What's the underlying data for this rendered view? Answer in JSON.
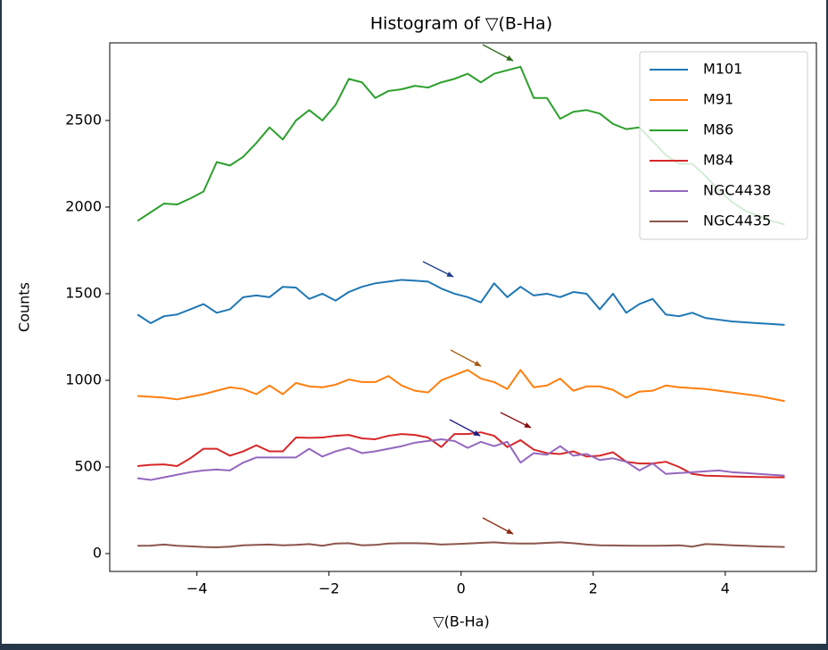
{
  "chart_data": {
    "type": "line",
    "title": "Histogram of ▽(B-Ha)",
    "xlabel": "▽(B-Ha)",
    "ylabel": "Counts",
    "x": [
      -4.9,
      -4.7,
      -4.5,
      -4.3,
      -4.1,
      -3.9,
      -3.7,
      -3.5,
      -3.3,
      -3.1,
      -2.9,
      -2.7,
      -2.5,
      -2.3,
      -2.1,
      -1.9,
      -1.7,
      -1.5,
      -1.3,
      -1.1,
      -0.9,
      -0.7,
      -0.5,
      -0.3,
      -0.1,
      0.1,
      0.3,
      0.5,
      0.7,
      0.9,
      1.1,
      1.3,
      1.5,
      1.7,
      1.9,
      2.1,
      2.3,
      2.5,
      2.7,
      2.9,
      3.1,
      3.3,
      3.5,
      3.7,
      3.9,
      4.1,
      4.3,
      4.5,
      4.7,
      4.9
    ],
    "series": [
      {
        "name": "M101",
        "color": "#1f77b4",
        "values": [
          1380,
          1330,
          1370,
          1380,
          1410,
          1440,
          1390,
          1410,
          1480,
          1490,
          1480,
          1540,
          1535,
          1470,
          1500,
          1460,
          1510,
          1540,
          1560,
          1570,
          1580,
          1575,
          1570,
          1530,
          1500,
          1480,
          1450,
          1560,
          1480,
          1540,
          1490,
          1500,
          1480,
          1510,
          1500,
          1410,
          1500,
          1390,
          1440,
          1470,
          1380,
          1370,
          1390,
          1360,
          1350,
          1340,
          1335,
          1330,
          1325,
          1320
        ]
      },
      {
        "name": "M91",
        "color": "#ff7f0e",
        "values": [
          910,
          905,
          900,
          890,
          905,
          920,
          940,
          960,
          950,
          920,
          970,
          920,
          985,
          965,
          960,
          975,
          1005,
          990,
          990,
          1025,
          970,
          940,
          930,
          1000,
          1030,
          1060,
          1010,
          990,
          950,
          1060,
          960,
          970,
          1010,
          940,
          965,
          965,
          945,
          900,
          935,
          940,
          970,
          960,
          955,
          950,
          940,
          930,
          920,
          910,
          895,
          880
        ]
      },
      {
        "name": "M86",
        "color": "#2ca02c",
        "values": [
          1920,
          1970,
          2020,
          2015,
          2050,
          2090,
          2260,
          2240,
          2290,
          2370,
          2460,
          2390,
          2500,
          2560,
          2500,
          2590,
          2740,
          2720,
          2630,
          2670,
          2680,
          2700,
          2690,
          2720,
          2740,
          2770,
          2720,
          2770,
          2790,
          2810,
          2630,
          2630,
          2510,
          2550,
          2560,
          2540,
          2480,
          2450,
          2460,
          2380,
          2300,
          2250,
          2250,
          2180,
          2100,
          2030,
          1980,
          1950,
          1920,
          1900
        ]
      },
      {
        "name": "M84",
        "color": "#d62728",
        "values": [
          505,
          512,
          515,
          505,
          550,
          605,
          605,
          565,
          590,
          625,
          590,
          590,
          670,
          668,
          670,
          680,
          685,
          665,
          660,
          680,
          690,
          685,
          670,
          615,
          690,
          690,
          700,
          680,
          615,
          655,
          600,
          580,
          575,
          590,
          560,
          565,
          585,
          530,
          520,
          520,
          530,
          500,
          460,
          450,
          448,
          445,
          443,
          442,
          441,
          440
        ]
      },
      {
        "name": "NGC4438",
        "color": "#9467bd",
        "values": [
          435,
          425,
          440,
          455,
          470,
          480,
          485,
          480,
          525,
          555,
          555,
          555,
          555,
          605,
          560,
          590,
          610,
          580,
          590,
          605,
          620,
          640,
          650,
          660,
          650,
          610,
          645,
          620,
          645,
          525,
          580,
          570,
          620,
          565,
          575,
          540,
          550,
          530,
          480,
          520,
          460,
          465,
          470,
          475,
          480,
          470,
          465,
          460,
          455,
          450
        ]
      },
      {
        "name": "NGC4435",
        "color": "#8c564b",
        "values": [
          45,
          46,
          52,
          45,
          42,
          38,
          36,
          40,
          48,
          50,
          52,
          48,
          50,
          55,
          45,
          58,
          60,
          48,
          50,
          58,
          60,
          60,
          58,
          52,
          55,
          58,
          62,
          65,
          60,
          58,
          58,
          62,
          65,
          60,
          52,
          48,
          47,
          46,
          45,
          45,
          46,
          48,
          40,
          55,
          52,
          48,
          45,
          42,
          40,
          38
        ]
      }
    ],
    "xlim": [
      -5.32,
      5.38
    ],
    "ylim": [
      -103,
      2948
    ],
    "xticks": [
      {
        "value": -4,
        "label": "−4"
      },
      {
        "value": -2,
        "label": "−2"
      },
      0,
      2,
      4
    ],
    "yticks": [
      0,
      500,
      1000,
      1500,
      2000,
      2500
    ],
    "legend": "upper right"
  }
}
